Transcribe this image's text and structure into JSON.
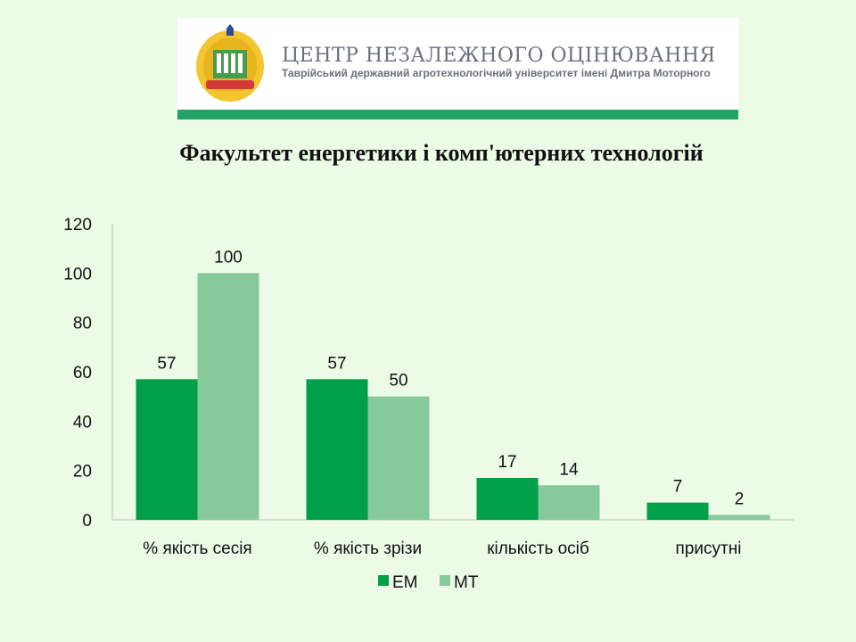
{
  "header": {
    "org_name": "ЦЕНТР НЕЗАЛЕЖНОГО ОЦІНЮВАННЯ",
    "org_subtitle": "Таврійський державний агротехнологічний університет імені Дмитра Моторного",
    "logo_icon": "university-crest-icon",
    "accent_color": "#22a366"
  },
  "chart_data": {
    "type": "bar",
    "title": "Факультет енергетики і комп'ютерних технологій",
    "categories": [
      "% якість сесія",
      "% якість зрізи",
      "кількість осіб",
      "присутні"
    ],
    "series": [
      {
        "name": "ЕМ",
        "values": [
          57,
          57,
          17,
          7
        ],
        "color": "#00a04a"
      },
      {
        "name": "МТ",
        "values": [
          100,
          50,
          14,
          2
        ],
        "color": "#86c99a"
      }
    ],
    "ylim": [
      0,
      120
    ],
    "yticks": [
      "0",
      "20",
      "40",
      "60",
      "80",
      "100",
      "120"
    ],
    "grid": false,
    "legend_position": "bottom"
  }
}
